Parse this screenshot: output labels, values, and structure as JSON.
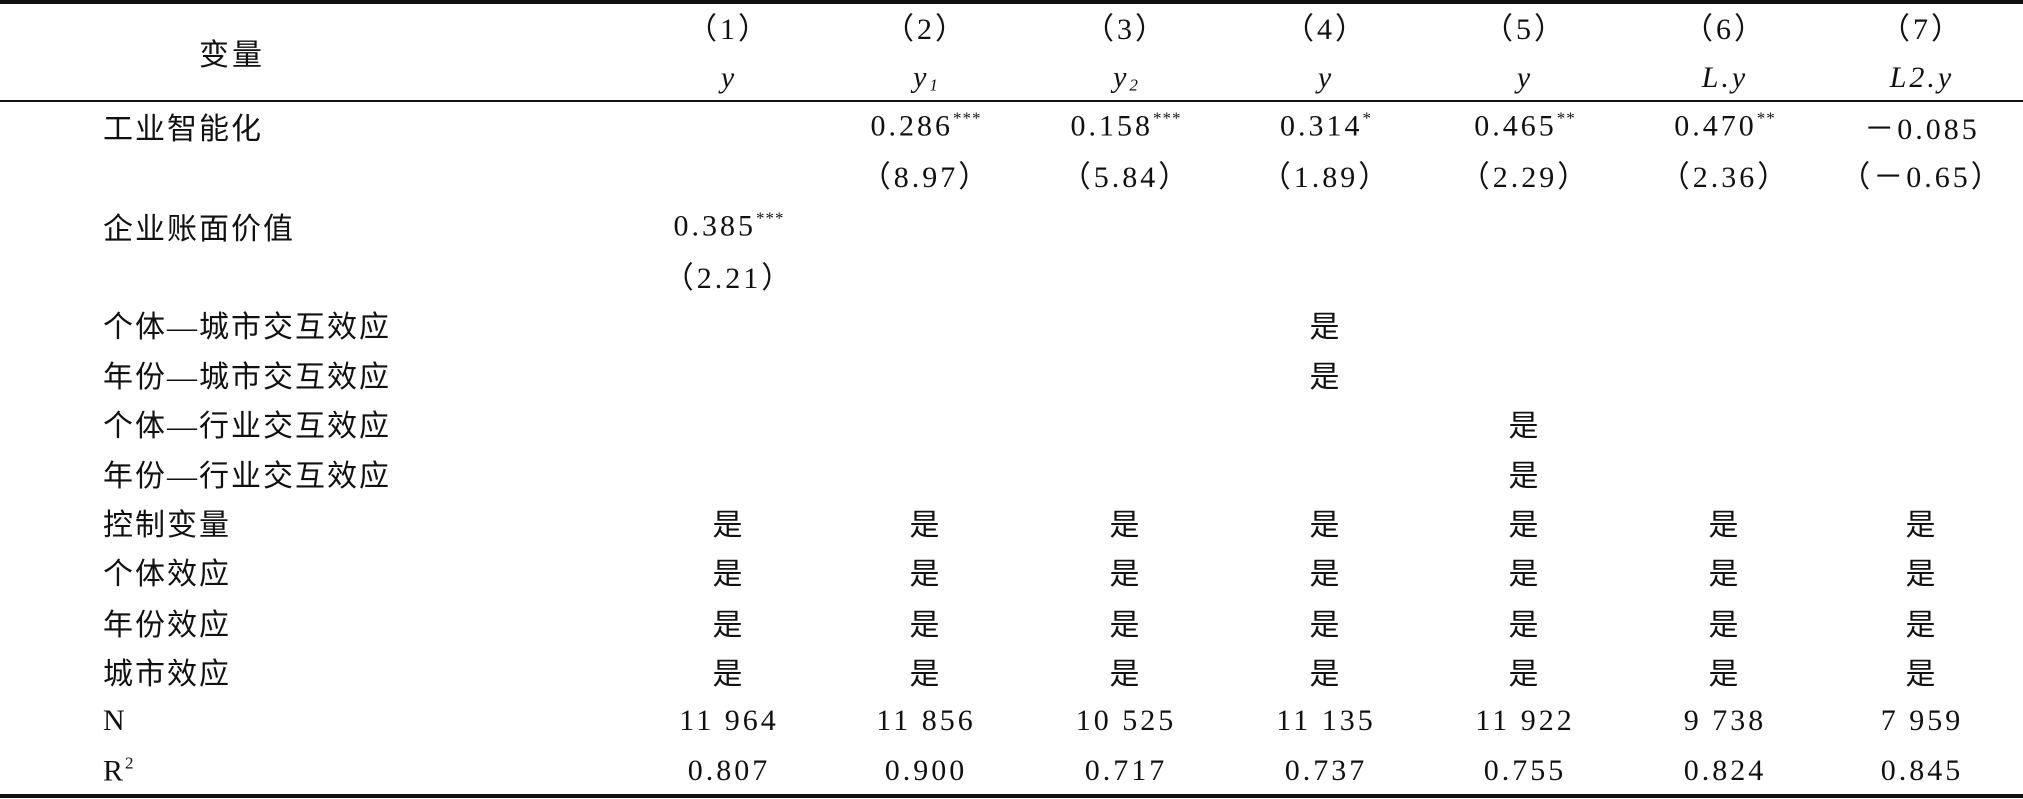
{
  "table": {
    "header": {
      "label": "变量",
      "columns": [
        {
          "number": "（1）",
          "variable": {
            "text": "y"
          }
        },
        {
          "number": "（2）",
          "variable": {
            "text": "y",
            "sub": "1"
          }
        },
        {
          "number": "（3）",
          "variable": {
            "text": "y",
            "sub": "2"
          }
        },
        {
          "number": "（4）",
          "variable": {
            "text": "y"
          }
        },
        {
          "number": "（5）",
          "variable": {
            "text": "y"
          }
        },
        {
          "number": "（6）",
          "variable": {
            "text": "L.y"
          }
        },
        {
          "number": "（7）",
          "variable": {
            "text": "L2.y"
          }
        }
      ]
    },
    "rows": [
      {
        "label": "工业智能化",
        "cells": [
          null,
          {
            "text": "0.286",
            "sup": "***"
          },
          {
            "text": "0.158",
            "sup": "***"
          },
          {
            "text": "0.314",
            "sup": "*"
          },
          {
            "text": "0.465",
            "sup": "**"
          },
          {
            "text": "0.470",
            "sup": "**"
          },
          "－0.085"
        ]
      },
      {
        "label": null,
        "cells": [
          null,
          "（8.97）",
          "（5.84）",
          "（1.89）",
          "（2.29）",
          "（2.36）",
          "（－0.65）"
        ]
      },
      {
        "label": "企业账面价值",
        "cells": [
          {
            "text": "0.385",
            "sup": "***"
          },
          null,
          null,
          null,
          null,
          null,
          null
        ]
      },
      {
        "label": null,
        "cells": [
          "（2.21）",
          null,
          null,
          null,
          null,
          null,
          null
        ]
      },
      {
        "label": "个体—城市交互效应",
        "cells": [
          null,
          null,
          null,
          "是",
          null,
          null,
          null
        ]
      },
      {
        "label": "年份—城市交互效应",
        "cells": [
          null,
          null,
          null,
          "是",
          null,
          null,
          null
        ]
      },
      {
        "label": "个体—行业交互效应",
        "cells": [
          null,
          null,
          null,
          null,
          "是",
          null,
          null
        ]
      },
      {
        "label": "年份—行业交互效应",
        "cells": [
          null,
          null,
          null,
          null,
          "是",
          null,
          null
        ]
      },
      {
        "label": "控制变量",
        "cells": [
          "是",
          "是",
          "是",
          "是",
          "是",
          "是",
          "是"
        ]
      },
      {
        "label": "个体效应",
        "cells": [
          "是",
          "是",
          "是",
          "是",
          "是",
          "是",
          "是"
        ]
      },
      {
        "label": "年份效应",
        "cells": [
          "是",
          "是",
          "是",
          "是",
          "是",
          "是",
          "是"
        ]
      },
      {
        "label": "城市效应",
        "cells": [
          "是",
          "是",
          "是",
          "是",
          "是",
          "是",
          "是"
        ]
      },
      {
        "label": "N",
        "cells": [
          "11 964",
          "11 856",
          "10 525",
          "11 135",
          "11 922",
          "9 738",
          "7 959"
        ]
      },
      {
        "label": {
          "text": "R",
          "sup": "2"
        },
        "cells": [
          "0.807",
          "0.900",
          "0.717",
          "0.737",
          "0.755",
          "0.824",
          "0.845"
        ]
      }
    ]
  }
}
